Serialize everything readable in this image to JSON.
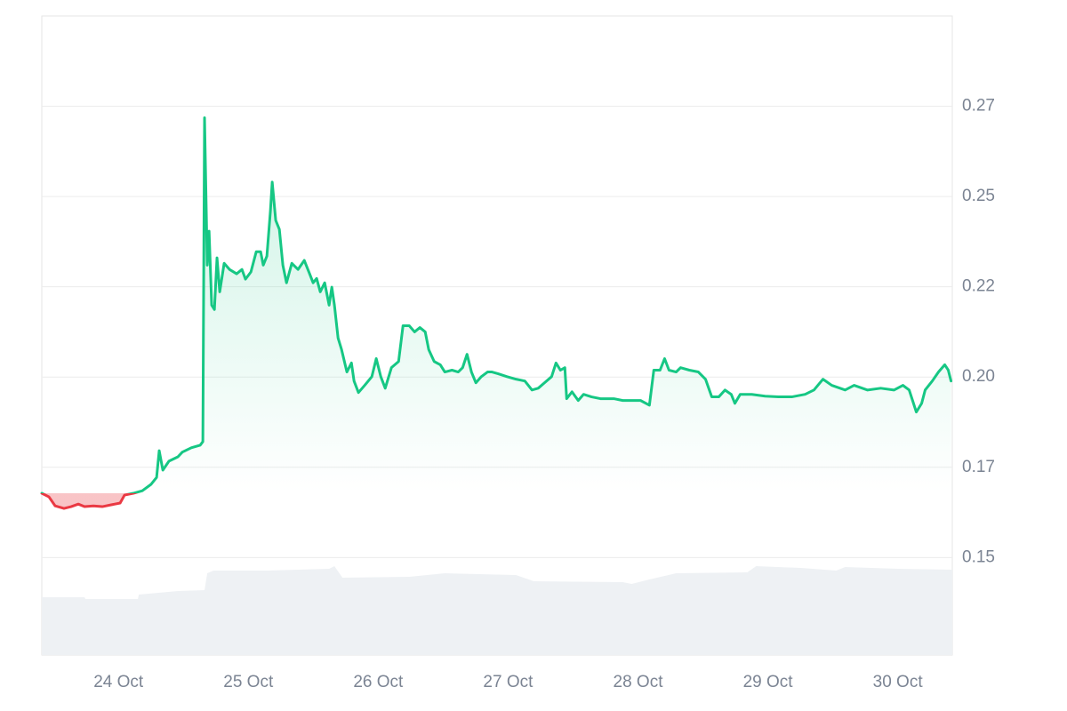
{
  "chart_data": [
    {
      "type": "line",
      "color": "#16c784",
      "down_color": "#ea3943",
      "xlim": [
        23.41,
        30.42
      ],
      "ylim": [
        0.123,
        0.3
      ],
      "xticks": [
        {
          "value": 24,
          "label": "24 Oct"
        },
        {
          "value": 25,
          "label": "25 Oct"
        },
        {
          "value": 26,
          "label": "26 Oct"
        },
        {
          "value": 27,
          "label": "27 Oct"
        },
        {
          "value": 28,
          "label": "28 Oct"
        },
        {
          "value": 29,
          "label": "29 Oct"
        },
        {
          "value": 30,
          "label": "30 Oct"
        }
      ],
      "yticks": [
        {
          "value": 0.15,
          "label": "0.15"
        },
        {
          "value": 0.175,
          "label": "0.17"
        },
        {
          "value": 0.2,
          "label": "0.20"
        },
        {
          "value": 0.225,
          "label": "0.22"
        },
        {
          "value": 0.25,
          "label": "0.25"
        },
        {
          "value": 0.275,
          "label": "0.27"
        }
      ],
      "grid": true,
      "x": [
        23.41,
        23.465,
        23.513,
        23.581,
        23.636,
        23.691,
        23.739,
        23.807,
        23.876,
        23.944,
        24.013,
        24.047,
        24.115,
        24.184,
        24.252,
        24.294,
        24.314,
        24.342,
        24.389,
        24.458,
        24.492,
        24.561,
        24.629,
        24.65,
        24.663,
        24.684,
        24.698,
        24.718,
        24.739,
        24.759,
        24.78,
        24.814,
        24.855,
        24.91,
        24.951,
        24.978,
        25.02,
        25.061,
        25.095,
        25.115,
        25.143,
        25.17,
        25.184,
        25.211,
        25.239,
        25.266,
        25.294,
        25.335,
        25.383,
        25.431,
        25.472,
        25.499,
        25.526,
        25.554,
        25.588,
        25.622,
        25.643,
        25.663,
        25.691,
        25.718,
        25.759,
        25.794,
        25.814,
        25.848,
        25.896,
        25.951,
        25.985,
        26.02,
        26.054,
        26.102,
        26.157,
        26.191,
        26.239,
        26.28,
        26.321,
        26.362,
        26.389,
        26.431,
        26.478,
        26.513,
        26.568,
        26.616,
        26.65,
        26.684,
        26.718,
        26.752,
        26.794,
        26.842,
        26.876,
        26.924,
        26.992,
        27.061,
        27.129,
        27.184,
        27.232,
        27.28,
        27.335,
        27.369,
        27.403,
        27.437,
        27.451,
        27.492,
        27.54,
        27.581,
        27.643,
        27.711,
        27.814,
        27.883,
        27.951,
        28.02,
        28.088,
        28.122,
        28.17,
        28.205,
        28.239,
        28.294,
        28.328,
        28.396,
        28.465,
        28.52,
        28.568,
        28.622,
        28.67,
        28.718,
        28.746,
        28.787,
        28.876,
        28.979,
        29.081,
        29.184,
        29.287,
        29.355,
        29.424,
        29.492,
        29.595,
        29.664,
        29.766,
        29.869,
        29.972,
        30.04,
        30.088,
        30.143,
        30.184,
        30.211,
        30.266,
        30.314,
        30.362,
        30.389,
        30.41
      ],
      "values": [
        0.1678,
        0.1668,
        0.1643,
        0.1636,
        0.1641,
        0.1648,
        0.1641,
        0.1643,
        0.1641,
        0.1646,
        0.1651,
        0.1673,
        0.1678,
        0.1685,
        0.1703,
        0.1722,
        0.1796,
        0.1742,
        0.1767,
        0.1779,
        0.1792,
        0.1804,
        0.1811,
        0.1821,
        0.2718,
        0.231,
        0.2404,
        0.2199,
        0.2187,
        0.233,
        0.2236,
        0.2315,
        0.2298,
        0.2286,
        0.2298,
        0.2271,
        0.2291,
        0.2347,
        0.2347,
        0.231,
        0.2335,
        0.2459,
        0.254,
        0.2434,
        0.2409,
        0.231,
        0.2261,
        0.2315,
        0.2298,
        0.2323,
        0.2286,
        0.2261,
        0.2273,
        0.2236,
        0.2261,
        0.2199,
        0.2249,
        0.2199,
        0.2108,
        0.2076,
        0.2014,
        0.2039,
        0.1989,
        0.1957,
        0.1977,
        0.2001,
        0.2051,
        0.2001,
        0.1969,
        0.2026,
        0.2043,
        0.2142,
        0.2142,
        0.2125,
        0.2137,
        0.2125,
        0.2076,
        0.2043,
        0.2034,
        0.2014,
        0.2019,
        0.2014,
        0.2026,
        0.2063,
        0.2014,
        0.1984,
        0.2001,
        0.2014,
        0.2014,
        0.2009,
        0.2001,
        0.1994,
        0.1989,
        0.1964,
        0.1969,
        0.1984,
        0.2001,
        0.2039,
        0.2019,
        0.2026,
        0.194,
        0.1959,
        0.1935,
        0.1952,
        0.1945,
        0.194,
        0.194,
        0.1935,
        0.1935,
        0.1935,
        0.1922,
        0.2019,
        0.2019,
        0.2051,
        0.2019,
        0.2014,
        0.2026,
        0.2019,
        0.2014,
        0.1994,
        0.1945,
        0.1945,
        0.1964,
        0.1952,
        0.1927,
        0.1952,
        0.1952,
        0.1947,
        0.1945,
        0.1945,
        0.1952,
        0.1964,
        0.1994,
        0.1977,
        0.1964,
        0.1977,
        0.1964,
        0.1969,
        0.1964,
        0.1977,
        0.1964,
        0.1903,
        0.1927,
        0.1964,
        0.1989,
        0.2014,
        0.2034,
        0.2019,
        0.1989
      ]
    },
    {
      "type": "area",
      "color": "#eef1f4",
      "xlim": [
        23.41,
        30.42
      ],
      "ylim": [
        0,
        100
      ],
      "x": [
        23.41,
        23.739,
        23.746,
        24.15,
        24.157,
        24.458,
        24.663,
        24.684,
        24.732,
        25.143,
        25.622,
        25.663,
        25.725,
        26.239,
        26.513,
        27.061,
        27.198,
        27.883,
        27.951,
        28.088,
        28.294,
        28.842,
        28.91,
        29.253,
        29.527,
        29.595,
        30.006,
        30.42
      ],
      "values": [
        65,
        65,
        63,
        63,
        68,
        72,
        73,
        92,
        95,
        95,
        97,
        100,
        87,
        88,
        92,
        90,
        83,
        82,
        80,
        85,
        92,
        93,
        100,
        98,
        95,
        99,
        97,
        96
      ]
    }
  ]
}
